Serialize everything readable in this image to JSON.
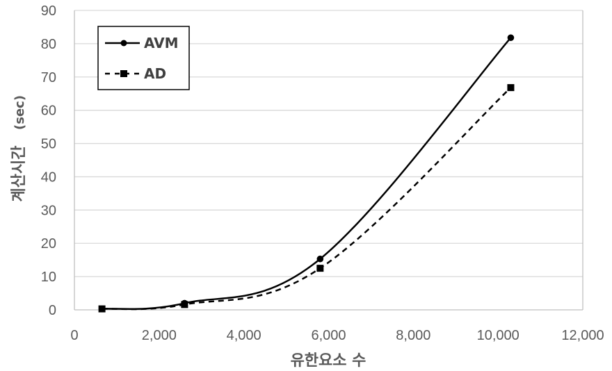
{
  "chart_data": {
    "type": "line",
    "title": "",
    "xlabel": "유한요소 수",
    "ylabel": "계산시간(sec)",
    "ylabel_main": "계산시간",
    "ylabel_unit": "(sec)",
    "xlim": [
      0,
      12000
    ],
    "ylim": [
      0,
      90
    ],
    "x_ticks": [
      0,
      2000,
      4000,
      6000,
      8000,
      10000,
      12000
    ],
    "x_tick_labels": [
      "0",
      "2,000",
      "4,000",
      "6,000",
      "8,000",
      "10,000",
      "12,000"
    ],
    "y_ticks": [
      0,
      10,
      20,
      30,
      40,
      50,
      60,
      70,
      80,
      90
    ],
    "y_tick_labels": [
      "0",
      "10",
      "20",
      "30",
      "40",
      "50",
      "60",
      "70",
      "80",
      "90"
    ],
    "grid": "horizontal",
    "legend_position": "upper-left",
    "smoothed": true,
    "series": [
      {
        "name": "AVM",
        "line": "solid",
        "marker": "circle",
        "color": "#000000",
        "x": [
          650,
          2600,
          5800,
          10300
        ],
        "values": [
          0.3,
          2.0,
          15.3,
          81.8
        ]
      },
      {
        "name": "AD",
        "line": "dashed",
        "marker": "square",
        "color": "#000000",
        "x": [
          650,
          2600,
          5800,
          10300
        ],
        "values": [
          0.3,
          1.6,
          12.5,
          66.8
        ]
      }
    ]
  },
  "legend": {
    "items": [
      {
        "label": "AVM"
      },
      {
        "label": "AD"
      }
    ]
  }
}
